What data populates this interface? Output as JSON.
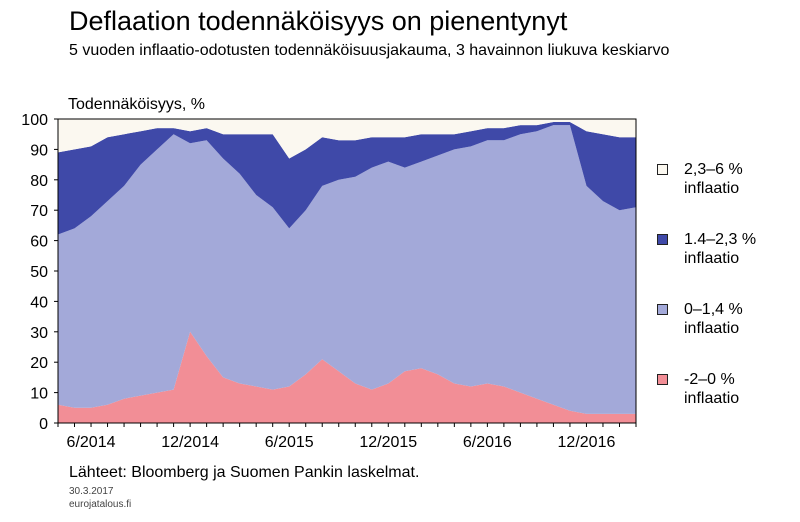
{
  "header": {
    "title": "Deflaation todennäköisyys on pienentynyt",
    "subtitle": "5 vuoden inflaatio-odotusten todennäköisuusjakauma, 3 havainnon liukuva keskiarvo"
  },
  "footer": {
    "source": "Lähteet: Bloomberg ja Suomen Pankin laskelmat.",
    "date": "30.3.2017",
    "site": "eurojatalous.fi"
  },
  "colors": {
    "band1": "#f28e96",
    "band2": "#a3a9d9",
    "band3": "#3f49a8",
    "band4": "#fbf8f0",
    "axis": "#000000"
  },
  "chart_data": {
    "type": "area",
    "ylabel": "Todennäköisyys, %",
    "ylim": [
      0,
      100
    ],
    "yticks": [
      "0",
      "10",
      "20",
      "30",
      "40",
      "50",
      "60",
      "70",
      "80",
      "90",
      "100"
    ],
    "xticks": [
      "6/2014",
      "12/2014",
      "6/2015",
      "12/2015",
      "6/2016",
      "12/2016"
    ],
    "grid": false,
    "legend_position": "right",
    "stacked": true,
    "x": [
      "2014-04",
      "2014-05",
      "2014-06",
      "2014-07",
      "2014-08",
      "2014-09",
      "2014-10",
      "2014-11",
      "2014-12",
      "2015-01",
      "2015-02",
      "2015-03",
      "2015-04",
      "2015-05",
      "2015-06",
      "2015-07",
      "2015-08",
      "2015-09",
      "2015-10",
      "2015-11",
      "2015-12",
      "2016-01",
      "2016-02",
      "2016-03",
      "2016-04",
      "2016-05",
      "2016-06",
      "2016-07",
      "2016-08",
      "2016-09",
      "2016-10",
      "2016-11",
      "2016-12",
      "2017-01",
      "2017-02",
      "2017-03"
    ],
    "series": [
      {
        "name": "-2–0 % inflaatio",
        "values": [
          6,
          5,
          5,
          6,
          8,
          9,
          10,
          11,
          30,
          22,
          15,
          13,
          12,
          11,
          12,
          16,
          21,
          17,
          13,
          11,
          13,
          17,
          18,
          16,
          13,
          12,
          13,
          12,
          10,
          8,
          6,
          4,
          3,
          3,
          3,
          3
        ]
      },
      {
        "name": "0–1,4 % inflaatio",
        "values": [
          56,
          59,
          63,
          67,
          70,
          76,
          80,
          84,
          62,
          71,
          72,
          69,
          63,
          60,
          52,
          54,
          57,
          63,
          68,
          73,
          73,
          67,
          68,
          72,
          77,
          79,
          80,
          81,
          85,
          88,
          92,
          94,
          75,
          70,
          67,
          68
        ]
      },
      {
        "name": "1.4–2,3 % inflaatio",
        "values": [
          27,
          26,
          23,
          21,
          17,
          11,
          7,
          2,
          4,
          4,
          8,
          13,
          20,
          24,
          23,
          20,
          16,
          13,
          12,
          10,
          8,
          10,
          9,
          7,
          5,
          5,
          4,
          4,
          3,
          2,
          1,
          1,
          18,
          22,
          24,
          23
        ]
      },
      {
        "name": "2,3–6 % inflaatio",
        "values": [
          11,
          10,
          9,
          6,
          5,
          4,
          3,
          3,
          4,
          3,
          5,
          5,
          5,
          5,
          13,
          10,
          6,
          7,
          7,
          6,
          6,
          6,
          5,
          5,
          5,
          4,
          3,
          3,
          2,
          2,
          1,
          1,
          4,
          5,
          6,
          6
        ]
      }
    ]
  },
  "legend": [
    {
      "line1": "2,3–6 %",
      "line2": "inflaatio"
    },
    {
      "line1": "1.4–2,3 %",
      "line2": "inflaatio"
    },
    {
      "line1": " 0–1,4 %",
      "line2": "inflaatio"
    },
    {
      "line1": "-2–0 %",
      "line2": "inflaatio"
    }
  ]
}
